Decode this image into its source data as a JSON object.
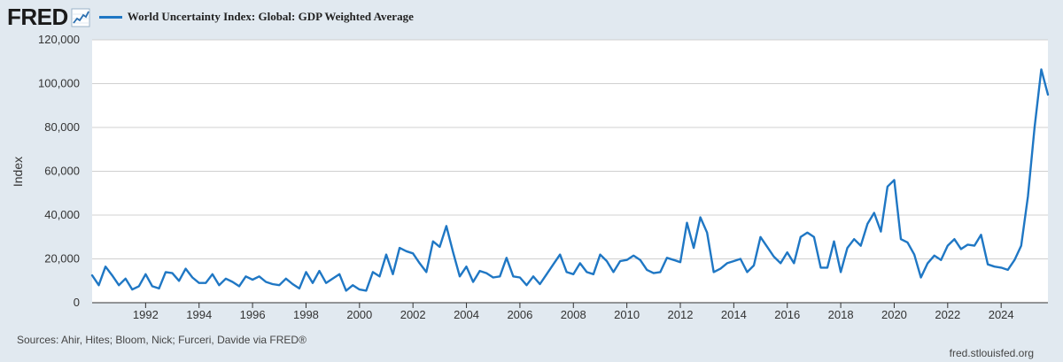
{
  "header": {
    "logo": "FRED",
    "logo_icon": "chart-line-icon"
  },
  "chart_data": {
    "type": "line",
    "title": "",
    "xlabel": "",
    "ylabel": "Index",
    "xlim": [
      1990.0,
      2025.75
    ],
    "ylim": [
      0,
      120000
    ],
    "grid": "horizontal",
    "legend_position": "top-left",
    "y_ticks": [
      0,
      20000,
      40000,
      60000,
      80000,
      100000,
      120000
    ],
    "y_tick_labels": [
      "0",
      "20,000",
      "40,000",
      "60,000",
      "80,000",
      "100,000",
      "120,000"
    ],
    "x_ticks": [
      1992,
      1994,
      1996,
      1998,
      2000,
      2002,
      2004,
      2006,
      2008,
      2010,
      2012,
      2014,
      2016,
      2018,
      2020,
      2022,
      2024
    ],
    "x_tick_labels": [
      "1992",
      "1994",
      "1996",
      "1998",
      "2000",
      "2002",
      "2004",
      "2006",
      "2008",
      "2010",
      "2012",
      "2014",
      "2016",
      "2018",
      "2020",
      "2022",
      "2024"
    ],
    "series": [
      {
        "name": "World Uncertainty Index: Global: GDP Weighted Average",
        "color": "#1f77c4",
        "x_start": "1990-Q1",
        "frequency": "quarterly",
        "values": [
          12500,
          8000,
          16500,
          12500,
          8000,
          11000,
          6000,
          7500,
          13000,
          7500,
          6500,
          14000,
          13500,
          10000,
          15500,
          11500,
          9000,
          9000,
          13000,
          8000,
          11000,
          9500,
          7500,
          12000,
          10500,
          12000,
          9500,
          8500,
          8000,
          11000,
          8500,
          6500,
          14000,
          9000,
          14500,
          9000,
          11000,
          13000,
          5500,
          8000,
          6000,
          5500,
          14000,
          12000,
          22000,
          13000,
          25000,
          23500,
          22500,
          18000,
          14000,
          28000,
          25500,
          35000,
          23000,
          12000,
          16500,
          9500,
          14500,
          13500,
          11500,
          12000,
          20500,
          12000,
          11500,
          8000,
          12000,
          8500,
          13000,
          17500,
          22000,
          14000,
          13000,
          18000,
          14000,
          13000,
          22000,
          19000,
          14000,
          19000,
          19500,
          21500,
          19500,
          15000,
          13500,
          14000,
          20500,
          19500,
          18500,
          36500,
          25000,
          39000,
          32000,
          14000,
          15500,
          18000,
          19000,
          20000,
          14000,
          17000,
          30000,
          25500,
          21000,
          18000,
          23000,
          18000,
          30000,
          32000,
          30000,
          16000,
          16000,
          28000,
          14000,
          25000,
          29000,
          26000,
          36000,
          41000,
          32500,
          53000,
          56000,
          29000,
          27500,
          22000,
          11500,
          18000,
          21500,
          19500,
          26000,
          29000,
          24500,
          26500,
          26000,
          31000,
          17500,
          16500,
          16000,
          15000,
          19500,
          26000,
          48500,
          80000,
          106500,
          95000
        ]
      }
    ],
    "sources_text": "Sources: Ahir, Hites; Bloom, Nick; Furceri, Davide via FRED®",
    "site": "fred.stlouisfed.org"
  }
}
